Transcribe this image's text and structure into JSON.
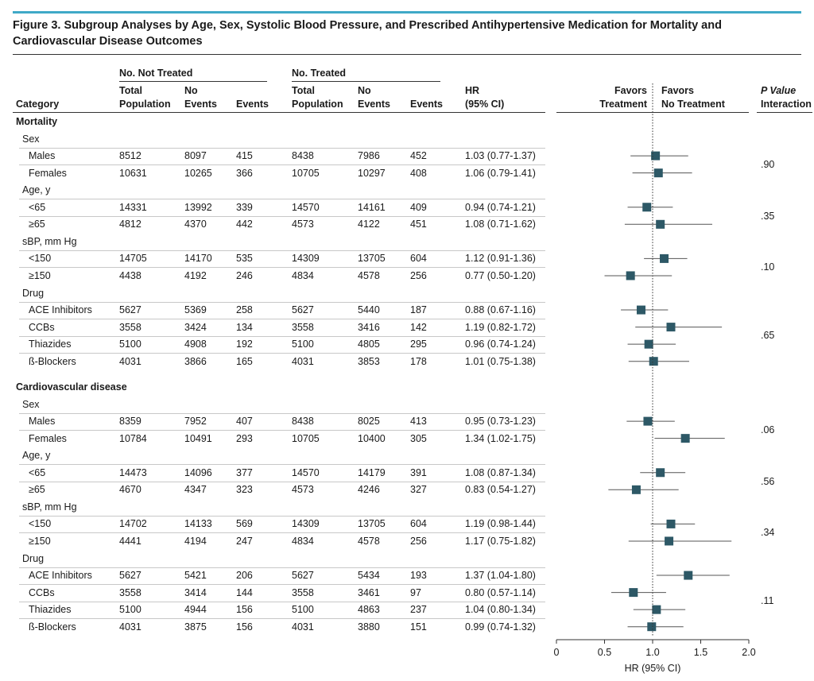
{
  "figure_title": "Figure 3. Subgroup Analyses by Age, Sex, Systolic Blood Pressure, and Prescribed Antihypertensive Medication for Mortality and Cardiovascular Disease Outcomes",
  "headers": {
    "category": "Category",
    "not_treated_group": "No. Not Treated",
    "treated_group": "No. Treated",
    "total_population": [
      "Total",
      "Population"
    ],
    "no_events": [
      "No",
      "Events"
    ],
    "events": "Events",
    "hr": [
      "HR",
      "(95% CI)"
    ],
    "favors_treatment": [
      "Favors",
      "Treatment"
    ],
    "favors_no_treatment": [
      "Favors",
      "No Treatment"
    ],
    "p_value": [
      "P Value",
      "Interaction"
    ]
  },
  "chart_data": {
    "type": "forest",
    "title": "Figure 3. Subgroup Analyses by Age, Sex, Systolic Blood Pressure, and Prescribed Antihypertensive Medication for Mortality and Cardiovascular Disease Outcomes",
    "xlabel": "HR (95% CI)",
    "xlim": [
      0,
      2.0
    ],
    "xticks": [
      "0",
      "0.5",
      "1.0",
      "1.5",
      "2.0"
    ],
    "xtick_values": [
      0,
      0.5,
      1.0,
      1.5,
      2.0
    ],
    "reference_line": 1.0,
    "sections": [
      {
        "outcome": "Mortality",
        "subgroups": [
          {
            "name": "Sex",
            "p_interaction": ".90",
            "rows": [
              {
                "label": "Males",
                "nt_total": "8512",
                "nt_no_events": "8097",
                "nt_events": "415",
                "t_total": "8438",
                "t_no_events": "7986",
                "t_events": "452",
                "hr_text": "1.03 (0.77-1.37)",
                "hr": 1.03,
                "lo": 0.77,
                "hi": 1.37
              },
              {
                "label": "Females",
                "nt_total": "10631",
                "nt_no_events": "10265",
                "nt_events": "366",
                "t_total": "10705",
                "t_no_events": "10297",
                "t_events": "408",
                "hr_text": "1.06 (0.79-1.41)",
                "hr": 1.06,
                "lo": 0.79,
                "hi": 1.41
              }
            ]
          },
          {
            "name": "Age, y",
            "p_interaction": ".35",
            "rows": [
              {
                "label": "<65",
                "nt_total": "14331",
                "nt_no_events": "13992",
                "nt_events": "339",
                "t_total": "14570",
                "t_no_events": "14161",
                "t_events": "409",
                "hr_text": "0.94 (0.74-1.21)",
                "hr": 0.94,
                "lo": 0.74,
                "hi": 1.21
              },
              {
                "label": "≥65",
                "nt_total": "4812",
                "nt_no_events": "4370",
                "nt_events": "442",
                "t_total": "4573",
                "t_no_events": "4122",
                "t_events": "451",
                "hr_text": "1.08 (0.71-1.62)",
                "hr": 1.08,
                "lo": 0.71,
                "hi": 1.62
              }
            ]
          },
          {
            "name": "sBP, mm Hg",
            "p_interaction": ".10",
            "rows": [
              {
                "label": "<150",
                "nt_total": "14705",
                "nt_no_events": "14170",
                "nt_events": "535",
                "t_total": "14309",
                "t_no_events": "13705",
                "t_events": "604",
                "hr_text": "1.12 (0.91-1.36)",
                "hr": 1.12,
                "lo": 0.91,
                "hi": 1.36
              },
              {
                "label": "≥150",
                "nt_total": "4438",
                "nt_no_events": "4192",
                "nt_events": "246",
                "t_total": "4834",
                "t_no_events": "4578",
                "t_events": "256",
                "hr_text": "0.77 (0.50-1.20)",
                "hr": 0.77,
                "lo": 0.5,
                "hi": 1.2
              }
            ]
          },
          {
            "name": "Drug",
            "p_interaction": ".65",
            "rows": [
              {
                "label": "ACE Inhibitors",
                "nt_total": "5627",
                "nt_no_events": "5369",
                "nt_events": "258",
                "t_total": "5627",
                "t_no_events": "5440",
                "t_events": "187",
                "hr_text": "0.88 (0.67-1.16)",
                "hr": 0.88,
                "lo": 0.67,
                "hi": 1.16
              },
              {
                "label": "CCBs",
                "nt_total": "3558",
                "nt_no_events": "3424",
                "nt_events": "134",
                "t_total": "3558",
                "t_no_events": "3416",
                "t_events": "142",
                "hr_text": "1.19 (0.82-1.72)",
                "hr": 1.19,
                "lo": 0.82,
                "hi": 1.72
              },
              {
                "label": "Thiazides",
                "nt_total": "5100",
                "nt_no_events": "4908",
                "nt_events": "192",
                "t_total": "5100",
                "t_no_events": "4805",
                "t_events": "295",
                "hr_text": "0.96 (0.74-1.24)",
                "hr": 0.96,
                "lo": 0.74,
                "hi": 1.24
              },
              {
                "label": "ß-Blockers",
                "nt_total": "4031",
                "nt_no_events": "3866",
                "nt_events": "165",
                "t_total": "4031",
                "t_no_events": "3853",
                "t_events": "178",
                "hr_text": "1.01 (0.75-1.38)",
                "hr": 1.01,
                "lo": 0.75,
                "hi": 1.38
              }
            ]
          }
        ]
      },
      {
        "outcome": "Cardiovascular disease",
        "subgroups": [
          {
            "name": "Sex",
            "p_interaction": ".06",
            "rows": [
              {
                "label": "Males",
                "nt_total": "8359",
                "nt_no_events": "7952",
                "nt_events": "407",
                "t_total": "8438",
                "t_no_events": "8025",
                "t_events": "413",
                "hr_text": "0.95 (0.73-1.23)",
                "hr": 0.95,
                "lo": 0.73,
                "hi": 1.23
              },
              {
                "label": "Females",
                "nt_total": "10784",
                "nt_no_events": "10491",
                "nt_events": "293",
                "t_total": "10705",
                "t_no_events": "10400",
                "t_events": "305",
                "hr_text": "1.34 (1.02-1.75)",
                "hr": 1.34,
                "lo": 1.02,
                "hi": 1.75
              }
            ]
          },
          {
            "name": "Age, y",
            "p_interaction": ".56",
            "rows": [
              {
                "label": "<65",
                "nt_total": "14473",
                "nt_no_events": "14096",
                "nt_events": "377",
                "t_total": "14570",
                "t_no_events": "14179",
                "t_events": "391",
                "hr_text": "1.08 (0.87-1.34)",
                "hr": 1.08,
                "lo": 0.87,
                "hi": 1.34
              },
              {
                "label": "≥65",
                "nt_total": "4670",
                "nt_no_events": "4347",
                "nt_events": "323",
                "t_total": "4573",
                "t_no_events": "4246",
                "t_events": "327",
                "hr_text": "0.83 (0.54-1.27)",
                "hr": 0.83,
                "lo": 0.54,
                "hi": 1.27
              }
            ]
          },
          {
            "name": "sBP, mm Hg",
            "p_interaction": ".34",
            "rows": [
              {
                "label": "<150",
                "nt_total": "14702",
                "nt_no_events": "14133",
                "nt_events": "569",
                "t_total": "14309",
                "t_no_events": "13705",
                "t_events": "604",
                "hr_text": "1.19 (0.98-1.44)",
                "hr": 1.19,
                "lo": 0.98,
                "hi": 1.44
              },
              {
                "label": "≥150",
                "nt_total": "4441",
                "nt_no_events": "4194",
                "nt_events": "247",
                "t_total": "4834",
                "t_no_events": "4578",
                "t_events": "256",
                "hr_text": "1.17 (0.75-1.82)",
                "hr": 1.17,
                "lo": 0.75,
                "hi": 1.82
              }
            ]
          },
          {
            "name": "Drug",
            "p_interaction": ".11",
            "rows": [
              {
                "label": "ACE Inhibitors",
                "nt_total": "5627",
                "nt_no_events": "5421",
                "nt_events": "206",
                "t_total": "5627",
                "t_no_events": "5434",
                "t_events": "193",
                "hr_text": "1.37 (1.04-1.80)",
                "hr": 1.37,
                "lo": 1.04,
                "hi": 1.8
              },
              {
                "label": "CCBs",
                "nt_total": "3558",
                "nt_no_events": "3414",
                "nt_events": "144",
                "t_total": "3558",
                "t_no_events": "3461",
                "t_events": "97",
                "hr_text": "0.80 (0.57-1.14)",
                "hr": 0.8,
                "lo": 0.57,
                "hi": 1.14
              },
              {
                "label": "Thiazides",
                "nt_total": "5100",
                "nt_no_events": "4944",
                "nt_events": "156",
                "t_total": "5100",
                "t_no_events": "4863",
                "t_events": "237",
                "hr_text": "1.04 (0.80-1.34)",
                "hr": 1.04,
                "lo": 0.8,
                "hi": 1.34
              },
              {
                "label": "ß-Blockers",
                "nt_total": "4031",
                "nt_no_events": "3875",
                "nt_events": "156",
                "t_total": "4031",
                "t_no_events": "3880",
                "t_events": "151",
                "hr_text": "0.99 (0.74-1.32)",
                "hr": 0.99,
                "lo": 0.74,
                "hi": 1.32
              }
            ]
          }
        ]
      }
    ]
  },
  "colors": {
    "marker": "#2d5866",
    "accent_line": "#3fa9c7",
    "ci_line": "#555555",
    "text": "#1a1a1a"
  }
}
